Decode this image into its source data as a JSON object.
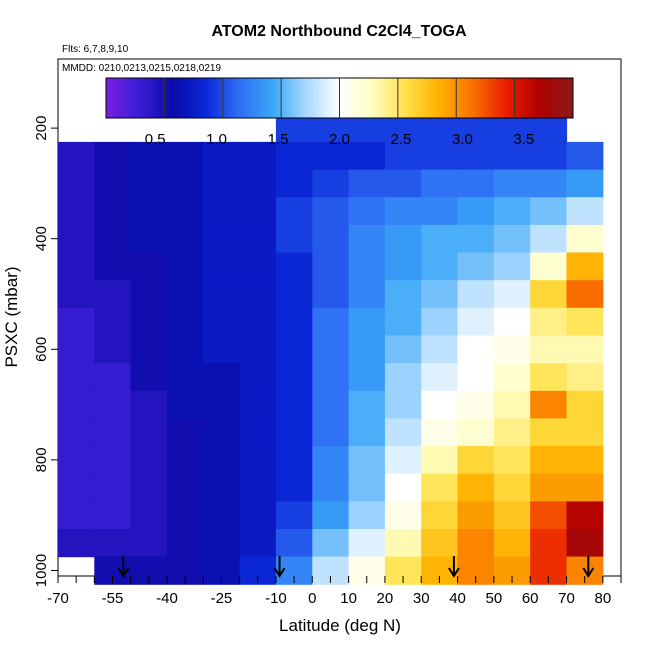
{
  "chart_data": {
    "type": "heatmap",
    "title": "ATOM2 Northbound C2Cl4_TOGA",
    "flights_text": "Flts: 6,7,8,9,10",
    "dates_text": "MMDD: 0210,0213,0215,0218,0219",
    "xlabel": "Latitude (deg N)",
    "ylabel": "PSXC (mbar)",
    "xlim": [
      -70,
      85
    ],
    "ylim": [
      1010,
      75
    ],
    "y_reversed": true,
    "x_ticks_major": [
      -70,
      -55,
      -40,
      -25,
      -10,
      0,
      10,
      20,
      30,
      40,
      50,
      60,
      70,
      80
    ],
    "x_ticks_minor": [
      -65,
      -60,
      -50,
      -45,
      -35,
      -30,
      -20,
      -15,
      -5,
      5,
      15,
      25,
      35,
      45,
      55,
      65,
      75,
      85
    ],
    "y_ticks": [
      200,
      400,
      600,
      800,
      1000
    ],
    "colorbar": {
      "range": [
        0.1,
        3.9
      ],
      "ticks": [
        0.5,
        1.0,
        1.5,
        2.0,
        2.5,
        3.0,
        3.5
      ],
      "tick_labels": [
        "0.5",
        "1.0",
        "1.5",
        "2.0",
        "2.5",
        "3.0",
        "3.5"
      ],
      "colors": [
        "#7a1fe0",
        "#3a1dd6",
        "#0a0aa8",
        "#0b28d8",
        "#2f6ff5",
        "#3aa6f7",
        "#a8d8ff",
        "#ffffff",
        "#fffdc0",
        "#ffe046",
        "#ffb000",
        "#f97000",
        "#ea1d00",
        "#b00000",
        "#8a1a1a"
      ]
    },
    "field": {
      "lat_edges": [
        -70,
        -60,
        -50,
        -40,
        -30,
        -20,
        -10,
        0,
        10,
        20,
        30,
        40,
        50,
        60,
        70,
        80
      ],
      "pressure_levels": [
        200,
        250,
        300,
        350,
        400,
        450,
        500,
        550,
        600,
        650,
        700,
        750,
        800,
        850,
        900,
        950,
        1000
      ],
      "values": [
        [
          null,
          null,
          null,
          null,
          null,
          null,
          1.0,
          1.0,
          1.0,
          1.0,
          1.0,
          1.0,
          1.0,
          1.0,
          null
        ],
        [
          0.5,
          0.6,
          0.7,
          0.7,
          0.8,
          0.8,
          0.9,
          0.9,
          0.9,
          1.0,
          1.0,
          1.0,
          1.0,
          1.0,
          1.1
        ],
        [
          0.5,
          0.6,
          0.7,
          0.7,
          0.8,
          0.8,
          0.9,
          1.0,
          1.1,
          1.1,
          1.2,
          1.2,
          1.3,
          1.3,
          1.4
        ],
        [
          0.5,
          0.6,
          0.7,
          0.7,
          0.8,
          0.8,
          1.0,
          1.1,
          1.2,
          1.3,
          1.3,
          1.4,
          1.5,
          1.6,
          1.8
        ],
        [
          0.5,
          0.6,
          0.7,
          0.7,
          0.8,
          0.8,
          1.0,
          1.1,
          1.3,
          1.4,
          1.5,
          1.5,
          1.6,
          1.8,
          2.2
        ],
        [
          0.5,
          0.6,
          0.6,
          0.7,
          0.8,
          0.8,
          0.9,
          1.1,
          1.3,
          1.4,
          1.5,
          1.6,
          1.7,
          2.2,
          2.8
        ],
        [
          0.5,
          0.5,
          0.6,
          0.7,
          0.8,
          0.8,
          0.9,
          1.1,
          1.3,
          1.5,
          1.6,
          1.8,
          1.9,
          2.6,
          3.1
        ],
        [
          0.4,
          0.5,
          0.6,
          0.7,
          0.8,
          0.8,
          0.9,
          1.2,
          1.4,
          1.5,
          1.7,
          1.9,
          2.0,
          2.4,
          2.5
        ],
        [
          0.4,
          0.5,
          0.6,
          0.7,
          0.8,
          0.8,
          0.9,
          1.2,
          1.4,
          1.6,
          1.8,
          2.0,
          2.1,
          2.3,
          2.3
        ],
        [
          0.4,
          0.4,
          0.6,
          0.7,
          0.7,
          0.8,
          0.9,
          1.2,
          1.4,
          1.7,
          1.9,
          2.0,
          2.2,
          2.5,
          2.4
        ],
        [
          0.4,
          0.4,
          0.5,
          0.7,
          0.7,
          0.8,
          0.9,
          1.2,
          1.5,
          1.7,
          2.0,
          2.1,
          2.3,
          3.0,
          2.6
        ],
        [
          0.4,
          0.4,
          0.5,
          0.6,
          0.7,
          0.8,
          0.9,
          1.2,
          1.5,
          1.8,
          2.1,
          2.2,
          2.4,
          2.6,
          2.6
        ],
        [
          0.4,
          0.4,
          0.5,
          0.6,
          0.7,
          0.8,
          0.9,
          1.3,
          1.6,
          1.9,
          2.3,
          2.6,
          2.5,
          2.8,
          2.8
        ],
        [
          0.4,
          0.4,
          0.5,
          0.6,
          0.7,
          0.8,
          0.9,
          1.3,
          1.6,
          2.0,
          2.5,
          2.8,
          2.6,
          2.9,
          2.9
        ],
        [
          0.4,
          0.4,
          0.5,
          0.6,
          0.7,
          0.8,
          1.0,
          1.4,
          1.7,
          2.1,
          2.6,
          2.9,
          2.7,
          3.2,
          3.6
        ],
        [
          0.5,
          0.5,
          0.5,
          0.6,
          0.7,
          0.8,
          1.1,
          1.6,
          1.9,
          2.3,
          2.7,
          3.0,
          2.8,
          3.3,
          3.7
        ],
        [
          null,
          0.6,
          0.6,
          0.6,
          0.7,
          0.9,
          1.3,
          1.8,
          2.1,
          2.5,
          2.8,
          3.0,
          2.9,
          3.3,
          3.0
        ]
      ]
    },
    "arrows_latitude": [
      -52,
      -9,
      39,
      76
    ]
  }
}
